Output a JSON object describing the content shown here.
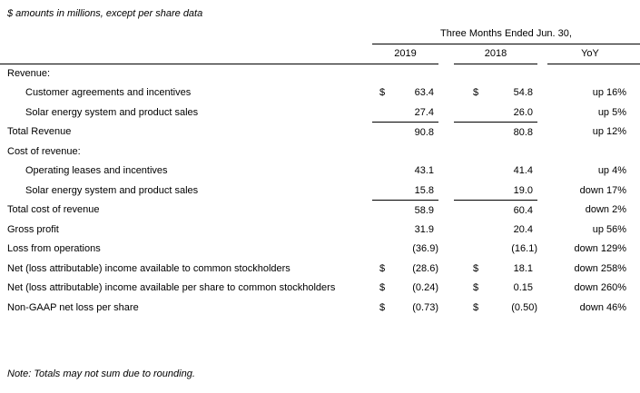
{
  "caption": "$ amounts in millions, except per share data",
  "note": "Note: Totals may not sum due to rounding.",
  "colors": {
    "background": "#ffffff",
    "text": "#000000",
    "rule": "#000000"
  },
  "table": {
    "group_header": "Three Months Ended Jun. 30,",
    "columns": {
      "col1": "2019",
      "col2": "2018",
      "col3": "YoY"
    },
    "rows": [
      {
        "label": "Revenue:",
        "indent": 0,
        "dollar": false,
        "v2019": "",
        "v2018": "",
        "yoy": "",
        "sum_line": false
      },
      {
        "label": "Customer agreements and incentives",
        "indent": 1,
        "dollar": true,
        "v2019": "63.4",
        "v2018": "54.8",
        "yoy": "up 16%",
        "sum_line": false
      },
      {
        "label": "Solar energy system and product sales",
        "indent": 1,
        "dollar": false,
        "v2019": "27.4",
        "v2018": "26.0",
        "yoy": "up 5%",
        "sum_line": true
      },
      {
        "label": "Total Revenue",
        "indent": 0,
        "dollar": false,
        "v2019": "90.8",
        "v2018": "80.8",
        "yoy": "up 12%",
        "sum_line": false
      },
      {
        "label": "Cost of revenue:",
        "indent": 0,
        "dollar": false,
        "v2019": "",
        "v2018": "",
        "yoy": "",
        "sum_line": false
      },
      {
        "label": "Operating leases and incentives",
        "indent": 1,
        "dollar": false,
        "v2019": "43.1",
        "v2018": "41.4",
        "yoy": "up 4%",
        "sum_line": false
      },
      {
        "label": "Solar energy system and product sales",
        "indent": 1,
        "dollar": false,
        "v2019": "15.8",
        "v2018": "19.0",
        "yoy": "down 17%",
        "sum_line": true
      },
      {
        "label": "Total cost of revenue",
        "indent": 0,
        "dollar": false,
        "v2019": "58.9",
        "v2018": "60.4",
        "yoy": "down 2%",
        "sum_line": false
      },
      {
        "label": "Gross profit",
        "indent": 0,
        "dollar": false,
        "v2019": "31.9",
        "v2018": "20.4",
        "yoy": "up 56%",
        "sum_line": false
      },
      {
        "label": "Loss from operations",
        "indent": 0,
        "dollar": false,
        "v2019": "(36.9)",
        "v2018": "(16.1)",
        "yoy": "down 129%",
        "sum_line": false
      },
      {
        "label": "Net (loss attributable) income available to common stockholders",
        "indent": 0,
        "dollar": true,
        "v2019": "(28.6)",
        "v2018": "18.1",
        "yoy": "down 258%",
        "sum_line": false
      },
      {
        "label": "Net (loss attributable) income available per share to common stockholders",
        "indent": 0,
        "dollar": true,
        "v2019": "(0.24)",
        "v2018": "0.15",
        "yoy": "down 260%",
        "sum_line": false
      },
      {
        "label": "Non-GAAP net loss per share",
        "indent": 0,
        "dollar": true,
        "v2019": "(0.73)",
        "v2018": "(0.50)",
        "yoy": "down 46%",
        "sum_line": false
      }
    ]
  }
}
